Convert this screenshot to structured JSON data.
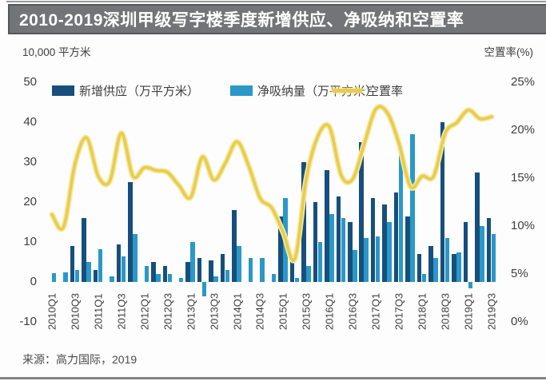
{
  "title": "2010-2019深圳甲级写字楼季度新增供应、净吸纳和空置率",
  "left_axis_unit": "10,000 平方米",
  "right_axis_unit": "空置率(%)",
  "source": "来源：高力国际，2019",
  "legend": [
    {
      "label": "新增供应（万平方米）",
      "color": "#174F7C",
      "type": "bar"
    },
    {
      "label": "净吸纳量（万平方米）",
      "color": "#2A98C8",
      "type": "bar"
    },
    {
      "label": "空置率",
      "color": "#E8CC4F",
      "type": "line"
    }
  ],
  "chart_data": {
    "type": "combo-bar-line",
    "categories": [
      "2010Q1",
      "2010Q2",
      "2010Q3",
      "2010Q4",
      "2011Q1",
      "2011Q2",
      "2011Q3",
      "2011Q4",
      "2012Q1",
      "2012Q2",
      "2012Q3",
      "2012Q4",
      "2013Q1",
      "2013Q2",
      "2013Q3",
      "2013Q4",
      "2014Q1",
      "2014Q2",
      "2014Q3",
      "2014Q4",
      "2015Q1",
      "2015Q2",
      "2015Q3",
      "2015Q4",
      "2016Q1",
      "2016Q2",
      "2016Q3",
      "2016Q4",
      "2017Q1",
      "2017Q2",
      "2017Q3",
      "2017Q4",
      "2018Q1",
      "2018Q2",
      "2018Q3",
      "2018Q4",
      "2019Q1",
      "2019Q2",
      "2019Q3"
    ],
    "x_tick_labels": [
      "2010Q1",
      "2010Q3",
      "2011Q1",
      "2011Q3",
      "2012Q1",
      "2012Q3",
      "2013Q1",
      "2013Q3",
      "2014Q1",
      "2014Q3",
      "2015Q1",
      "2015Q3",
      "2016Q1",
      "2016Q3",
      "2017Q1",
      "2017Q3",
      "2018Q1",
      "2018Q3",
      "2019Q1",
      "2019Q3"
    ],
    "series": [
      {
        "name": "新增供应（万平方米）",
        "type": "bar",
        "axis": "left",
        "color": "#174F7C",
        "values": [
          0,
          0,
          9,
          16,
          3,
          0,
          9.5,
          25,
          0,
          5,
          4,
          0,
          5,
          6,
          5.5,
          7,
          18,
          0,
          0,
          0,
          16.5,
          5,
          30,
          20,
          28,
          21.5,
          15,
          35,
          21,
          19.5,
          22.5,
          16.5,
          7,
          9,
          40,
          7,
          15,
          27.5,
          16
        ]
      },
      {
        "name": "净吸纳量（万平方米）",
        "type": "bar",
        "axis": "left",
        "color": "#2A98C8",
        "values": [
          2.3,
          2.5,
          3,
          5,
          8.3,
          1.5,
          6.5,
          12,
          4,
          2,
          2,
          1,
          10,
          -3.5,
          1.5,
          3,
          9,
          6,
          6,
          2,
          21,
          1,
          4,
          10,
          17,
          16,
          8,
          11,
          11.5,
          15,
          32,
          37,
          2,
          6,
          11,
          7.5,
          -1.5,
          14,
          12
        ]
      },
      {
        "name": "空置率",
        "type": "line",
        "axis": "right",
        "color": "#E8CC4F",
        "values": [
          11.2,
          9.9,
          16.5,
          19.2,
          15.2,
          14.7,
          19.7,
          15.2,
          16.1,
          15.8,
          15.6,
          14.2,
          13.0,
          17.2,
          14.8,
          16.6,
          18.8,
          16.3,
          12.9,
          11.9,
          9.3,
          6.6,
          15.0,
          19.4,
          20.3,
          15.3,
          14.9,
          18.6,
          22.2,
          21.8,
          18.6,
          14.1,
          15.2,
          15.2,
          19.7,
          20.8,
          22.1,
          21.2,
          21.4
        ]
      }
    ],
    "left_axis": {
      "min": -10,
      "max": 50,
      "ticks": [
        "50",
        "40",
        "30",
        "20",
        "10",
        "0",
        "-10"
      ],
      "label": "10,000 平方米"
    },
    "right_axis": {
      "min": 0,
      "max": 25,
      "ticks": [
        "25%",
        "20%",
        "15%",
        "10%",
        "5%",
        "0%"
      ],
      "label": "空置率(%)"
    },
    "grid": false,
    "legend_position": "top"
  }
}
